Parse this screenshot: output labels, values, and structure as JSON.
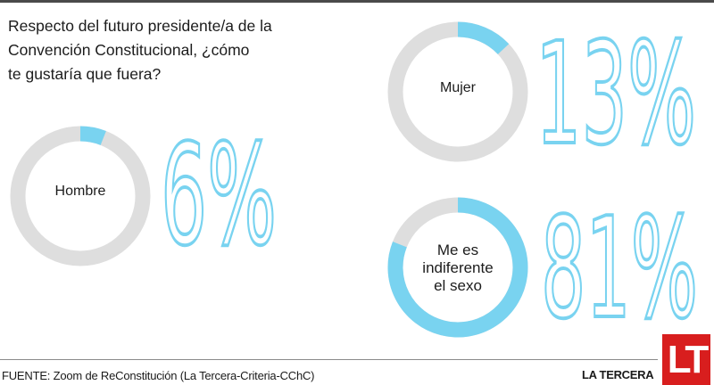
{
  "title_lines": [
    "Respecto del futuro presidente/a de la",
    "Convención Constitucional, ¿cómo",
    "te gustaría que fuera?"
  ],
  "chart_data": {
    "type": "pie",
    "variant": "donut",
    "title": "Respecto del futuro presidente/a de la Convención Constitucional, ¿cómo te gustaría que fuera?",
    "categories": [
      "Hombre",
      "Mujer",
      "Me es indiferente el sexo"
    ],
    "values": [
      6,
      13,
      81
    ],
    "unit": "%",
    "value_labels": [
      "6%",
      "13%",
      "81%"
    ],
    "colors": {
      "highlight": "#79d3f0",
      "track": "#dedede"
    },
    "legend": "none"
  },
  "donuts": [
    {
      "id": "hombre",
      "label_lines": [
        "Hombre"
      ],
      "value": 6,
      "pct_text": "6%"
    },
    {
      "id": "mujer",
      "label_lines": [
        "Mujer"
      ],
      "value": 13,
      "pct_text": "13%"
    },
    {
      "id": "indiferente",
      "label_lines": [
        "Me es",
        "indiferente",
        "el sexo"
      ],
      "value": 81,
      "pct_text": "81%"
    }
  ],
  "footer": {
    "source": "FUENTE: Zoom de ReConstitución (La Tercera-Criteria-CChC)",
    "brand_name": "LA TERCERA",
    "logo_text": "LT"
  }
}
